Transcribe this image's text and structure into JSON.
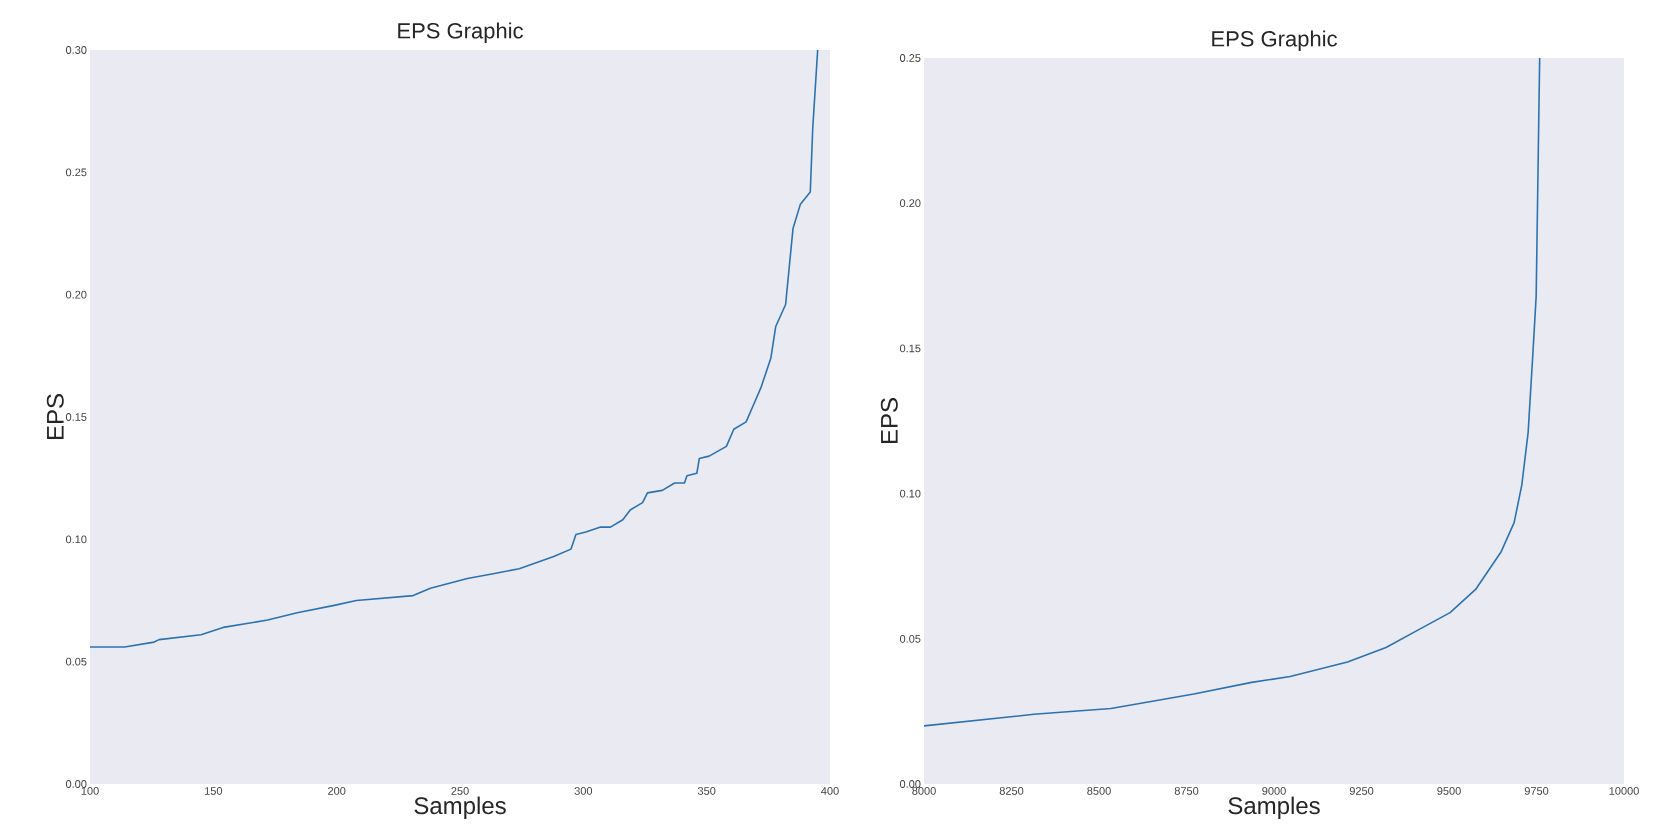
{
  "chart_data": [
    {
      "type": "line",
      "title": "EPS Graphic",
      "xlabel": "Samples",
      "ylabel": "EPS",
      "x": [
        100,
        114,
        126,
        128,
        145,
        154,
        172,
        184,
        199,
        208,
        231,
        238,
        253,
        264,
        274,
        288,
        295,
        297,
        301,
        307,
        311,
        316,
        319,
        324,
        326,
        332,
        337,
        341,
        342,
        346,
        347,
        351,
        358,
        361,
        366,
        369,
        372,
        376,
        378,
        382,
        385,
        388,
        392,
        393,
        395
      ],
      "series": [
        {
          "color": "#2c72b0",
          "values": [
            0.056,
            0.056,
            0.058,
            0.059,
            0.061,
            0.064,
            0.067,
            0.07,
            0.073,
            0.075,
            0.077,
            0.08,
            0.084,
            0.086,
            0.088,
            0.093,
            0.096,
            0.102,
            0.103,
            0.105,
            0.105,
            0.108,
            0.112,
            0.115,
            0.119,
            0.12,
            0.123,
            0.123,
            0.126,
            0.127,
            0.133,
            0.134,
            0.138,
            0.145,
            0.148,
            0.155,
            0.162,
            0.174,
            0.187,
            0.196,
            0.227,
            0.237,
            0.242,
            0.268,
            0.3
          ]
        }
      ],
      "xlim": [
        100,
        400
      ],
      "ylim": [
        0,
        0.3
      ],
      "xticks": [
        100,
        150,
        200,
        250,
        300,
        350,
        400
      ],
      "yticks": [
        {
          "value": 0,
          "label": "0.00"
        },
        {
          "value": 0.05,
          "label": "0.05"
        },
        {
          "value": 0.1,
          "label": "0.10"
        },
        {
          "value": 0.15,
          "label": "0.15"
        },
        {
          "value": 0.2,
          "label": "0.20"
        },
        {
          "value": 0.25,
          "label": "0.25"
        },
        {
          "value": 0.3,
          "label": "0.30"
        }
      ]
    },
    {
      "type": "line",
      "title": "EPS Graphic",
      "xlabel": "Samples",
      "ylabel": "EPS",
      "x": [
        8000,
        8314,
        8534,
        8771,
        8936,
        9046,
        9210,
        9320,
        9411,
        9503,
        9576,
        9649,
        9686,
        9708,
        9726,
        9740,
        9749,
        9759
      ],
      "series": [
        {
          "color": "#2c72b0",
          "values": [
            0.02,
            0.024,
            0.026,
            0.031,
            0.035,
            0.037,
            0.042,
            0.047,
            0.053,
            0.059,
            0.067,
            0.08,
            0.09,
            0.103,
            0.121,
            0.149,
            0.168,
            0.25
          ]
        }
      ],
      "xlim": [
        8000,
        10000
      ],
      "ylim": [
        0,
        0.25
      ],
      "xticks": [
        8000,
        8250,
        8500,
        8750,
        9000,
        9250,
        9500,
        9750,
        10000
      ],
      "yticks": [
        {
          "value": 0,
          "label": "0.00"
        },
        {
          "value": 0.05,
          "label": "0.05"
        },
        {
          "value": 0.1,
          "label": "0.10"
        },
        {
          "value": 0.15,
          "label": "0.15"
        },
        {
          "value": 0.2,
          "label": "0.20"
        },
        {
          "value": 0.25,
          "label": "0.25"
        }
      ]
    }
  ]
}
